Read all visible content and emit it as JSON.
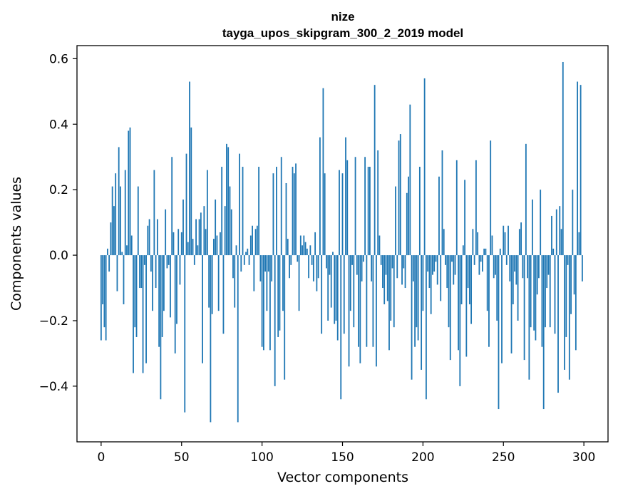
{
  "chart_data": {
    "type": "bar",
    "title": "nize",
    "subtitle": "tayga_upos_skipgram_300_2_2019 model",
    "xlabel": "Vector components",
    "ylabel": "Components values",
    "xlim": [
      -15,
      315
    ],
    "ylim": [
      -0.57,
      0.64
    ],
    "xticks": [
      0,
      50,
      100,
      150,
      200,
      250,
      300
    ],
    "yticks": [
      -0.4,
      -0.2,
      0.0,
      0.2,
      0.4,
      0.6
    ],
    "ytick_labels": [
      "−0.4",
      "−0.2",
      "0.0",
      "0.2",
      "0.4",
      "0.6"
    ],
    "bar_color": "#1f77b4",
    "values": [
      -0.26,
      -0.15,
      -0.22,
      -0.26,
      0.02,
      -0.05,
      0.1,
      0.21,
      0.15,
      0.25,
      -0.11,
      0.33,
      0.21,
      0.01,
      -0.15,
      0.26,
      0.03,
      0.38,
      0.39,
      0.06,
      -0.36,
      -0.22,
      -0.25,
      0.21,
      -0.1,
      -0.1,
      -0.36,
      -0.03,
      -0.33,
      0.09,
      0.11,
      -0.05,
      -0.17,
      0.26,
      -0.1,
      0.11,
      -0.28,
      -0.44,
      -0.25,
      -0.17,
      0.14,
      -0.04,
      -0.03,
      -0.19,
      0.3,
      0.07,
      -0.3,
      -0.21,
      0.08,
      -0.09,
      0.07,
      0.17,
      -0.48,
      0.31,
      0.04,
      0.53,
      0.39,
      0.05,
      -0.03,
      0.11,
      0.03,
      0.11,
      0.13,
      -0.33,
      0.15,
      0.08,
      0.26,
      -0.16,
      -0.51,
      -0.18,
      0.05,
      0.17,
      0.06,
      -0.17,
      0.07,
      0.27,
      -0.24,
      0.15,
      0.34,
      0.33,
      0.21,
      0.14,
      -0.07,
      -0.16,
      0.03,
      -0.51,
      0.31,
      -0.05,
      0.27,
      -0.03,
      0.01,
      0.02,
      -0.03,
      0.06,
      0.09,
      -0.11,
      0.08,
      0.09,
      0.27,
      -0.08,
      -0.28,
      -0.29,
      -0.05,
      -0.17,
      -0.05,
      -0.29,
      -0.08,
      0.25,
      -0.4,
      0.27,
      -0.25,
      -0.23,
      0.3,
      -0.17,
      -0.38,
      0.22,
      0.05,
      -0.07,
      -0.03,
      0.27,
      0.25,
      0.28,
      -0.02,
      -0.17,
      0.06,
      0.03,
      0.06,
      0.04,
      0.02,
      -0.07,
      0.03,
      -0.03,
      -0.08,
      0.07,
      -0.11,
      -0.07,
      0.36,
      -0.24,
      0.51,
      0.25,
      -0.04,
      -0.2,
      -0.06,
      -0.16,
      0.01,
      -0.21,
      -0.2,
      -0.26,
      0.26,
      -0.44,
      0.25,
      -0.24,
      0.36,
      0.29,
      -0.34,
      -0.17,
      -0.03,
      -0.22,
      0.3,
      -0.06,
      -0.28,
      -0.33,
      -0.08,
      -0.02,
      0.3,
      -0.28,
      0.27,
      0.27,
      -0.08,
      -0.28,
      0.52,
      -0.34,
      0.32,
      0.06,
      -0.03,
      -0.1,
      -0.15,
      -0.06,
      -0.14,
      -0.29,
      -0.2,
      -0.04,
      -0.22,
      0.21,
      -0.07,
      0.35,
      0.37,
      -0.09,
      -0.04,
      -0.1,
      0.19,
      0.24,
      0.46,
      -0.38,
      -0.08,
      -0.28,
      -0.22,
      -0.26,
      0.27,
      -0.35,
      -0.17,
      0.54,
      -0.44,
      -0.05,
      -0.1,
      -0.18,
      -0.06,
      -0.05,
      -0.02,
      -0.09,
      0.24,
      -0.14,
      0.32,
      0.08,
      -0.03,
      -0.1,
      -0.22,
      -0.32,
      -0.02,
      -0.09,
      -0.06,
      0.29,
      -0.29,
      -0.4,
      -0.15,
      0.03,
      0.23,
      -0.31,
      -0.1,
      -0.15,
      -0.21,
      0.08,
      -0.03,
      0.29,
      0.07,
      -0.06,
      -0.02,
      -0.05,
      0.02,
      0.02,
      -0.17,
      -0.28,
      0.35,
      0.06,
      -0.07,
      -0.06,
      -0.2,
      -0.47,
      0.02,
      -0.33,
      0.09,
      0.07,
      -0.03,
      0.09,
      -0.08,
      -0.3,
      -0.15,
      -0.05,
      -0.09,
      -0.2,
      0.08,
      0.1,
      -0.07,
      -0.32,
      0.34,
      -0.07,
      -0.38,
      -0.22,
      0.17,
      -0.23,
      -0.26,
      -0.12,
      -0.07,
      0.2,
      -0.28,
      -0.47,
      -0.22,
      -0.1,
      -0.06,
      -0.22,
      0.12,
      0.02,
      -0.24,
      0.14,
      -0.42,
      0.15,
      0.08,
      0.59,
      -0.35,
      -0.25,
      -0.03,
      -0.38,
      -0.18,
      0.2,
      -0.12,
      -0.29,
      0.53,
      0.07,
      0.52,
      -0.08
    ]
  }
}
